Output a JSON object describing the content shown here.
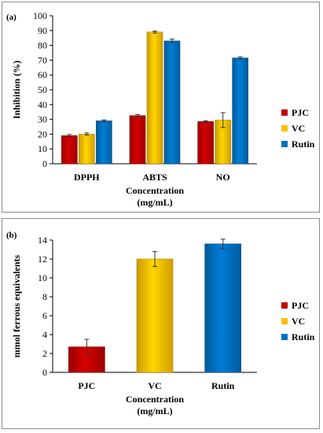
{
  "chart_data": [
    {
      "panel_label": "(a)",
      "type": "bar",
      "xlabel_lines": [
        "Concentration",
        "(mg/mL)"
      ],
      "ylabel": "Inhibition (%)",
      "ylim": [
        0,
        100
      ],
      "yticks": [
        0,
        10,
        20,
        30,
        40,
        50,
        60,
        70,
        80,
        90,
        100
      ],
      "categories": [
        "DPPH",
        "ABTS",
        "NO"
      ],
      "series": [
        {
          "name": "PJC",
          "values": [
            19,
            32.5,
            28.5
          ],
          "errors": [
            0.8,
            0.8,
            0.5
          ],
          "color": "#c00000"
        },
        {
          "name": "VC",
          "values": [
            20,
            89,
            29.5
          ],
          "errors": [
            0.8,
            0.7,
            5
          ],
          "color": "#ffc000"
        },
        {
          "name": "Rutin",
          "values": [
            29,
            83,
            71.5
          ],
          "errors": [
            0.6,
            1.2,
            0.8
          ],
          "color": "#0070c0"
        }
      ],
      "grid": false,
      "legend_position": "right"
    },
    {
      "panel_label": "(b)",
      "type": "bar",
      "xlabel_lines": [
        "Concentration",
        "(mg/mL)"
      ],
      "ylabel": "mmol ferrous equivalents",
      "ylim": [
        0,
        14
      ],
      "yticks": [
        0,
        2,
        4,
        6,
        8,
        10,
        12,
        14
      ],
      "categories": [
        "PJC",
        "VC",
        "Rutin"
      ],
      "series": [
        {
          "name": "PJC",
          "values": [
            2.7,
            null,
            null
          ],
          "errors": [
            0.8,
            null,
            null
          ],
          "color": "#c00000"
        },
        {
          "name": "VC",
          "values": [
            null,
            12,
            null
          ],
          "errors": [
            null,
            0.8,
            null
          ],
          "color": "#ffc000"
        },
        {
          "name": "Rutin",
          "values": [
            null,
            null,
            13.6
          ],
          "errors": [
            null,
            null,
            0.5
          ],
          "color": "#0070c0"
        }
      ],
      "grid": false,
      "legend_position": "right"
    }
  ]
}
